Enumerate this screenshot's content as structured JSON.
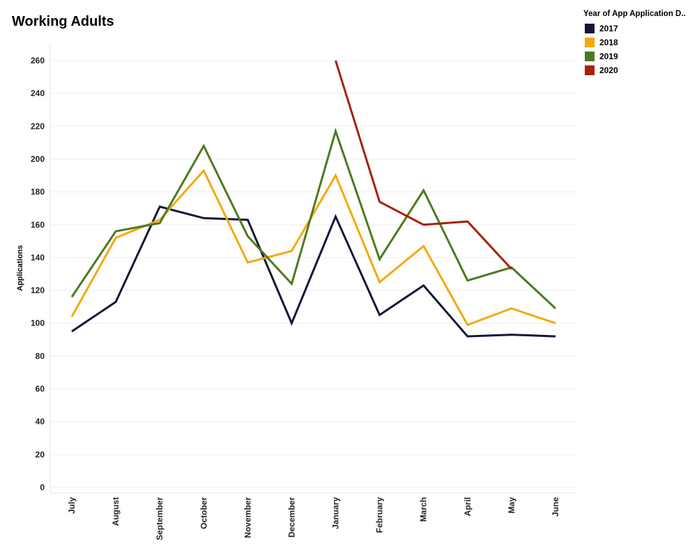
{
  "chart_title": "Working Adults",
  "legend": {
    "title": "Year of App Application D..",
    "items": [
      {
        "label": "2017",
        "color": "#12163a"
      },
      {
        "label": "2018",
        "color": "#f5a80f"
      },
      {
        "label": "2019",
        "color": "#4b7a1e"
      },
      {
        "label": "2020",
        "color": "#a5220b"
      }
    ]
  },
  "chart_data": {
    "type": "line",
    "title": "Working Adults",
    "xlabel": "",
    "ylabel": "Applications",
    "ylim": [
      0,
      270
    ],
    "yticks": [
      0,
      20,
      40,
      60,
      80,
      100,
      120,
      140,
      160,
      180,
      200,
      220,
      240,
      260
    ],
    "categories": [
      "July",
      "August",
      "September",
      "October",
      "November",
      "December",
      "January",
      "February",
      "March",
      "April",
      "May",
      "June"
    ],
    "series": [
      {
        "name": "2017",
        "color": "#12163a",
        "values": [
          95,
          113,
          171,
          164,
          163,
          100,
          165,
          105,
          123,
          92,
          93,
          92
        ]
      },
      {
        "name": "2018",
        "color": "#f5a80f",
        "values": [
          104,
          152,
          163,
          193,
          137,
          144,
          190,
          125,
          147,
          99,
          109,
          100
        ]
      },
      {
        "name": "2019",
        "color": "#4b7a1e",
        "values": [
          116,
          156,
          161,
          208,
          153,
          124,
          217,
          139,
          181,
          126,
          134,
          109
        ]
      },
      {
        "name": "2020",
        "color": "#a5220b",
        "values": [
          null,
          null,
          null,
          null,
          null,
          null,
          260,
          174,
          160,
          162,
          133,
          null
        ]
      }
    ],
    "grid": true,
    "legend_position": "top-right"
  }
}
